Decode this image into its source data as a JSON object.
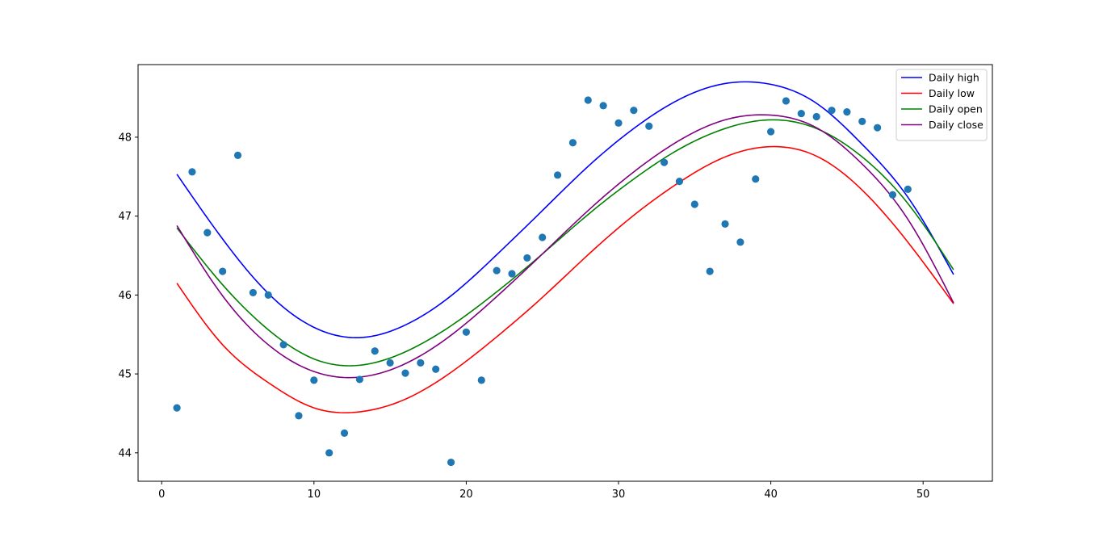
{
  "chart_data": {
    "type": "scatter",
    "title": "",
    "xlabel": "",
    "ylabel": "",
    "xlim": [
      -1.55,
      54.55
    ],
    "ylim": [
      43.64,
      48.92
    ],
    "x_ticks": [
      0,
      10,
      20,
      30,
      40,
      50
    ],
    "y_ticks": [
      44,
      45,
      46,
      47,
      48
    ],
    "grid": false,
    "legend_position": "top-right",
    "scatter_color": "#1f77b4",
    "points": {
      "x": [
        1,
        2,
        3,
        4,
        5,
        6,
        7,
        8,
        9,
        10,
        11,
        12,
        13,
        14,
        15,
        16,
        17,
        18,
        19,
        20,
        21,
        22,
        23,
        24,
        25,
        26,
        27,
        28,
        29,
        30,
        31,
        32,
        33,
        34,
        35,
        36,
        37,
        38,
        39,
        40,
        41,
        42,
        43,
        44,
        45,
        46,
        47,
        48,
        49
      ],
      "y": [
        44.57,
        47.56,
        46.79,
        46.3,
        47.77,
        46.03,
        46.0,
        45.37,
        44.47,
        44.92,
        44.0,
        44.25,
        44.93,
        45.29,
        45.14,
        45.01,
        45.14,
        45.06,
        43.88,
        45.53,
        44.92,
        46.31,
        46.27,
        46.47,
        46.73,
        47.52,
        47.93,
        48.47,
        48.4,
        48.18,
        48.34,
        48.14,
        47.68,
        47.44,
        47.15,
        46.3,
        46.9,
        46.67,
        47.47,
        48.07,
        48.46,
        48.3,
        48.26,
        48.34,
        48.32,
        48.2,
        48.12,
        47.27,
        47.34
      ]
    },
    "series": [
      {
        "name": "Daily high",
        "color": "#0000ff",
        "x": [
          1,
          4,
          7,
          10,
          13,
          16,
          19,
          22,
          25,
          28,
          31,
          34,
          37,
          40,
          43,
          46,
          49,
          52
        ],
        "values": [
          47.53,
          46.71,
          46.02,
          45.59,
          45.46,
          45.62,
          45.99,
          46.51,
          47.07,
          47.63,
          48.11,
          48.48,
          48.68,
          48.67,
          48.43,
          47.91,
          47.24,
          46.26
        ]
      },
      {
        "name": "Daily low",
        "color": "#ff0000",
        "x": [
          1,
          4,
          7,
          10,
          13,
          16,
          19,
          22,
          25,
          28,
          31,
          34,
          37,
          40,
          43,
          46,
          49,
          52
        ],
        "values": [
          46.15,
          45.37,
          44.89,
          44.57,
          44.52,
          44.68,
          45.02,
          45.47,
          45.97,
          46.51,
          47.01,
          47.43,
          47.75,
          47.88,
          47.76,
          47.33,
          46.67,
          45.89
        ]
      },
      {
        "name": "Daily open",
        "color": "#008000",
        "x": [
          1,
          4,
          7,
          10,
          13,
          16,
          19,
          22,
          25,
          28,
          31,
          34,
          37,
          40,
          43,
          46,
          49,
          52
        ],
        "values": [
          46.85,
          46.13,
          45.56,
          45.19,
          45.11,
          45.28,
          45.61,
          46.04,
          46.52,
          47.02,
          47.47,
          47.85,
          48.11,
          48.22,
          48.11,
          47.75,
          47.16,
          46.32
        ]
      },
      {
        "name": "Daily close",
        "color": "#800080",
        "x": [
          1,
          4,
          7,
          10,
          13,
          16,
          19,
          22,
          25,
          28,
          31,
          34,
          37,
          40,
          43,
          46,
          49,
          52
        ],
        "values": [
          46.88,
          45.99,
          45.37,
          45.03,
          44.96,
          45.13,
          45.49,
          45.98,
          46.52,
          47.07,
          47.56,
          47.96,
          48.22,
          48.28,
          48.12,
          47.66,
          46.96,
          45.9
        ]
      }
    ]
  }
}
